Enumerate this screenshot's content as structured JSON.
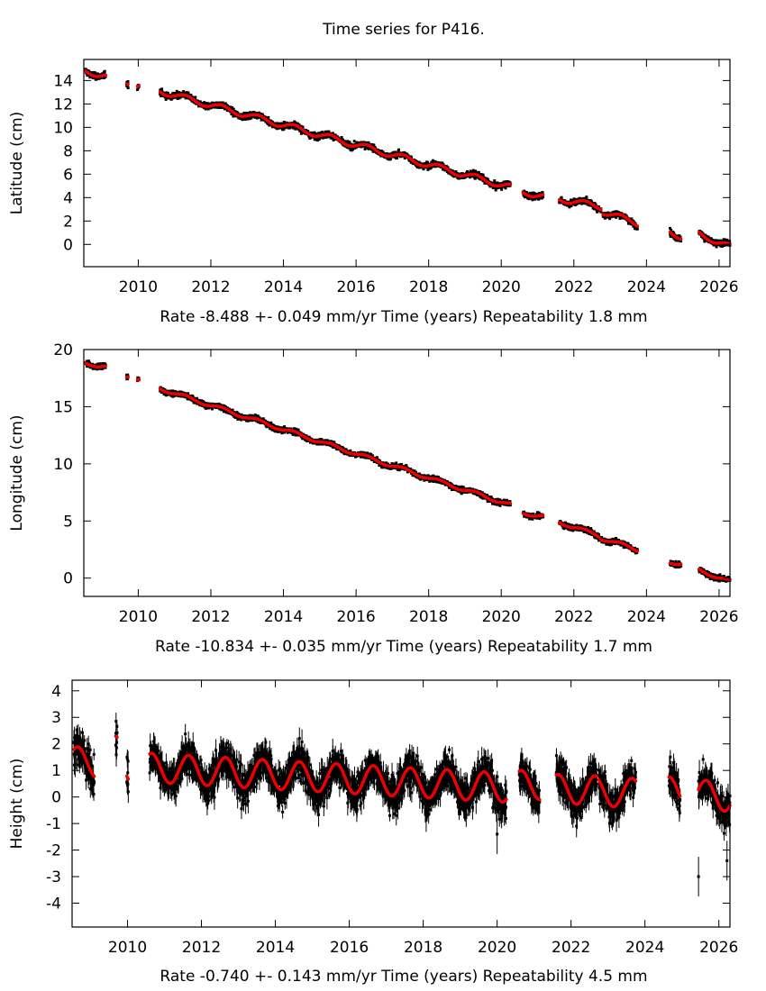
{
  "page_title": "Time series for P416.",
  "colors": {
    "data": "#000000",
    "fit": "#ee0000",
    "frame": "#000000"
  },
  "chart_data": [
    {
      "type": "scatter",
      "id": "latitude",
      "title": "Time series for P416.",
      "ylabel": "Latitude (cm)",
      "xlabel": "Time (years)",
      "rate_text": "Rate -8.488 +- 0.049 mm/yr",
      "repeatability_text": "Repeatability 1.8 mm",
      "xlim": [
        2008.5,
        2026.3
      ],
      "ylim": [
        -1.9,
        15.8
      ],
      "xticks": [
        2010,
        2012,
        2014,
        2016,
        2018,
        2020,
        2022,
        2024,
        2026
      ],
      "yticks": [
        0,
        2,
        4,
        6,
        8,
        10,
        12,
        14
      ],
      "grid": false,
      "seasonal_amplitude": 0.25,
      "noise": 0.22,
      "segments": [
        {
          "t0": 2008.55,
          "t1": 2009.1,
          "y0": 14.8,
          "y1": 14.4
        },
        {
          "t0": 2009.68,
          "t1": 2009.72,
          "y0": 13.9,
          "y1": 13.9
        },
        {
          "t0": 2009.98,
          "t1": 2010.02,
          "y0": 13.6,
          "y1": 13.6
        },
        {
          "t0": 2010.6,
          "t1": 2020.25,
          "y0": 13.1,
          "y1": 4.9
        },
        {
          "t0": 2020.6,
          "t1": 2021.15,
          "y0": 4.5,
          "y1": 4.1
        },
        {
          "t0": 2021.6,
          "t1": 2022.75,
          "y0": 3.9,
          "y1": 3.2
        },
        {
          "t0": 2022.8,
          "t1": 2023.75,
          "y0": 2.8,
          "y1": 1.8
        },
        {
          "t0": 2024.65,
          "t1": 2024.95,
          "y0": 1.2,
          "y1": 0.6
        },
        {
          "t0": 2025.45,
          "t1": 2026.3,
          "y0": 0.9,
          "y1": -0.2
        }
      ]
    },
    {
      "type": "scatter",
      "id": "longitude",
      "ylabel": "Longitude (cm)",
      "xlabel": "Time (years)",
      "rate_text": "Rate -10.834 +- 0.035 mm/yr",
      "repeatability_text": "Repeatability 1.7 mm",
      "xlim": [
        2008.5,
        2026.3
      ],
      "ylim": [
        -1.6,
        20.0
      ],
      "xticks": [
        2010,
        2012,
        2014,
        2016,
        2018,
        2020,
        2022,
        2024,
        2026
      ],
      "yticks": [
        0,
        5,
        10,
        15,
        20
      ],
      "grid": false,
      "seasonal_amplitude": 0.15,
      "noise": 0.2,
      "segments": [
        {
          "t0": 2008.55,
          "t1": 2009.1,
          "y0": 18.8,
          "y1": 18.5
        },
        {
          "t0": 2009.68,
          "t1": 2009.72,
          "y0": 17.7,
          "y1": 17.7
        },
        {
          "t0": 2009.98,
          "t1": 2010.02,
          "y0": 17.4,
          "y1": 17.4
        },
        {
          "t0": 2010.6,
          "t1": 2020.25,
          "y0": 16.6,
          "y1": 6.4
        },
        {
          "t0": 2020.6,
          "t1": 2021.15,
          "y0": 5.7,
          "y1": 5.4
        },
        {
          "t0": 2021.6,
          "t1": 2022.7,
          "y0": 4.9,
          "y1": 3.7
        },
        {
          "t0": 2022.75,
          "t1": 2023.75,
          "y0": 3.5,
          "y1": 2.5
        },
        {
          "t0": 2024.65,
          "t1": 2024.95,
          "y0": 1.4,
          "y1": 1.3
        },
        {
          "t0": 2025.45,
          "t1": 2026.3,
          "y0": 0.7,
          "y1": -0.3
        }
      ]
    },
    {
      "type": "scatter",
      "id": "height",
      "ylabel": "Height (cm)",
      "xlabel": "Time (years)",
      "rate_text": "Rate -0.740 +- 0.143 mm/yr",
      "repeatability_text": "Repeatability 4.5 mm",
      "xlim": [
        2008.5,
        2026.3
      ],
      "ylim": [
        -4.9,
        4.4
      ],
      "xticks": [
        2010,
        2012,
        2014,
        2016,
        2018,
        2020,
        2022,
        2024,
        2026
      ],
      "yticks": [
        -4,
        -3,
        -2,
        -1,
        0,
        1,
        2,
        3,
        4
      ],
      "grid": false,
      "seasonal_amplitude": 0.55,
      "seasonal_peak_phase": 0.65,
      "noise": 0.55,
      "segments": [
        {
          "t0": 2008.55,
          "t1": 2009.1,
          "y0": 1.35,
          "y1": 1.3
        },
        {
          "t0": 2009.68,
          "t1": 2009.72,
          "y0": 1.75,
          "y1": 1.75
        },
        {
          "t0": 2009.98,
          "t1": 2010.02,
          "y0": 1.05,
          "y1": 1.05
        },
        {
          "t0": 2010.6,
          "t1": 2020.25,
          "y0": 1.1,
          "y1": 0.35
        },
        {
          "t0": 2020.6,
          "t1": 2021.15,
          "y0": 0.45,
          "y1": 0.45
        },
        {
          "t0": 2021.6,
          "t1": 2022.7,
          "y0": 0.3,
          "y1": 0.25
        },
        {
          "t0": 2022.75,
          "t1": 2023.75,
          "y0": 0.2,
          "y1": 0.15
        },
        {
          "t0": 2024.65,
          "t1": 2024.95,
          "y0": 0.2,
          "y1": 0.2
        },
        {
          "t0": 2025.45,
          "t1": 2026.3,
          "y0": 0.1,
          "y1": 0.0
        }
      ],
      "outliers": [
        {
          "t": 2025.45,
          "y": -3.0
        },
        {
          "t": 2026.22,
          "y": -2.4
        },
        {
          "t": 2020.0,
          "y": -1.4
        }
      ]
    }
  ]
}
